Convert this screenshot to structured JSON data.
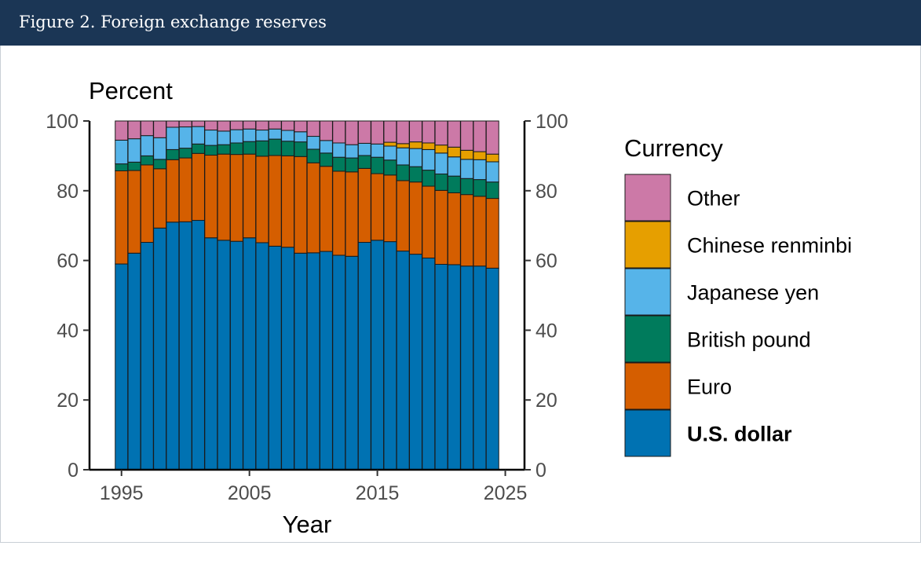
{
  "header": {
    "title": "Figure 2. Foreign exchange reserves"
  },
  "chart_data": {
    "type": "bar",
    "stacked": true,
    "ylabel": "Percent",
    "xlabel": "Year",
    "ylim": [
      0,
      100
    ],
    "xlim": [
      1992.5,
      2026.5
    ],
    "y_ticks": [
      0,
      20,
      40,
      60,
      80,
      100
    ],
    "x_ticks": [
      1995,
      2005,
      2015,
      2025
    ],
    "secondary_y_axis": true,
    "grid": false,
    "legend_title": "Currency",
    "legend_position": "right",
    "x": [
      1995,
      1996,
      1997,
      1998,
      1999,
      2000,
      2001,
      2002,
      2003,
      2004,
      2005,
      2006,
      2007,
      2008,
      2009,
      2010,
      2011,
      2012,
      2013,
      2014,
      2015,
      2016,
      2017,
      2018,
      2019,
      2020,
      2021,
      2022,
      2023,
      2024
    ],
    "series": [
      {
        "name": "U.S. dollar",
        "color": "#0072b2",
        "legend_bold": true,
        "values": [
          59.0,
          62.1,
          65.2,
          69.3,
          71.0,
          71.1,
          71.5,
          66.5,
          65.8,
          65.5,
          66.5,
          65.1,
          64.1,
          63.8,
          62.1,
          62.2,
          62.6,
          61.5,
          61.2,
          65.2,
          65.8,
          65.4,
          62.7,
          61.8,
          60.7,
          58.9,
          58.8,
          58.4,
          58.4,
          57.8
        ]
      },
      {
        "name": "Euro",
        "color": "#d55e00",
        "values": [
          26.7,
          23.7,
          22.2,
          17.0,
          17.9,
          18.3,
          19.2,
          23.7,
          24.7,
          24.9,
          24.0,
          24.8,
          26.0,
          26.2,
          27.7,
          25.8,
          24.4,
          24.1,
          24.2,
          21.2,
          19.1,
          19.1,
          20.2,
          20.7,
          20.6,
          21.2,
          20.6,
          20.5,
          20.0,
          20.0
        ]
      },
      {
        "name": "British pound",
        "color": "#007b5c",
        "values": [
          2.0,
          2.4,
          2.6,
          2.7,
          2.9,
          2.8,
          2.7,
          2.8,
          2.7,
          3.3,
          3.6,
          4.4,
          4.7,
          4.2,
          4.2,
          3.9,
          3.8,
          4.0,
          4.0,
          3.7,
          4.7,
          4.3,
          4.5,
          4.4,
          4.6,
          4.7,
          4.8,
          4.6,
          4.8,
          4.7
        ]
      },
      {
        "name": "Japanese yen",
        "color": "#56b4e9",
        "values": [
          6.8,
          6.7,
          5.8,
          6.2,
          6.4,
          6.1,
          5.0,
          4.4,
          3.9,
          3.8,
          3.6,
          3.1,
          2.9,
          3.1,
          2.9,
          3.7,
          3.6,
          4.1,
          3.8,
          3.5,
          3.8,
          4.0,
          4.9,
          5.2,
          5.9,
          6.0,
          5.5,
          5.5,
          5.7,
          5.8
        ]
      },
      {
        "name": "Chinese renminbi",
        "color": "#e69f00",
        "values": [
          0,
          0,
          0,
          0,
          0,
          0,
          0,
          0,
          0,
          0,
          0,
          0,
          0,
          0,
          0,
          0,
          0,
          0,
          0,
          0,
          0,
          1.1,
          1.2,
          1.9,
          1.9,
          2.3,
          2.8,
          2.6,
          2.3,
          2.2
        ]
      },
      {
        "name": "Other",
        "color": "#cc79a7",
        "values": [
          5.5,
          5.1,
          4.2,
          4.8,
          1.8,
          1.7,
          1.6,
          2.6,
          2.9,
          2.5,
          2.3,
          2.6,
          2.3,
          2.7,
          3.1,
          4.4,
          5.6,
          6.3,
          6.8,
          6.4,
          6.6,
          6.1,
          6.5,
          6.0,
          6.3,
          6.9,
          7.5,
          8.4,
          8.8,
          9.5
        ]
      }
    ]
  }
}
